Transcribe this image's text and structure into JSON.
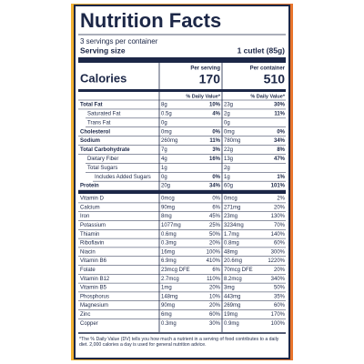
{
  "header": {
    "title": "Nutrition Facts",
    "servings": "3 servings per container",
    "serving_size_label": "Serving size",
    "serving_size": "1 cutlet (85g)"
  },
  "calories_label": "Calories",
  "columns": [
    {
      "heading": "Per serving",
      "calories": "170",
      "dv_heading": "% Daily Value*"
    },
    {
      "heading": "Per container",
      "calories": "510",
      "dv_heading": "% Daily Value*"
    }
  ],
  "nutrients": [
    {
      "name": "Total Fat",
      "bold": true,
      "indent": 0,
      "amounts": [
        "8g",
        "23g"
      ],
      "dv": [
        "10%",
        "30%"
      ]
    },
    {
      "name": "Saturated Fat",
      "bold": false,
      "indent": 1,
      "amounts": [
        "0.5g",
        "2g"
      ],
      "dv": [
        "4%",
        "11%"
      ]
    },
    {
      "name": "Trans Fat",
      "bold": false,
      "indent": 1,
      "amounts": [
        "0g",
        "0g"
      ],
      "dv": [
        null,
        null
      ]
    },
    {
      "name": "Cholesterol",
      "bold": true,
      "indent": 0,
      "amounts": [
        "0mg",
        "0mg"
      ],
      "dv": [
        "0%",
        "0%"
      ]
    },
    {
      "name": "Sodium",
      "bold": true,
      "indent": 0,
      "amounts": [
        "260mg",
        "780mg"
      ],
      "dv": [
        "11%",
        "34%"
      ]
    },
    {
      "name": "Total Carbohydrate",
      "bold": true,
      "indent": 0,
      "amounts": [
        "7g",
        "22g"
      ],
      "dv": [
        "3%",
        "8%"
      ]
    },
    {
      "name": "Dietary Fiber",
      "bold": false,
      "indent": 1,
      "amounts": [
        "4g",
        "13g"
      ],
      "dv": [
        "16%",
        "47%"
      ]
    },
    {
      "name": "Total Sugars",
      "bold": false,
      "indent": 1,
      "amounts": [
        "1g",
        "2g"
      ],
      "dv": [
        null,
        null
      ]
    },
    {
      "name": "Includes Added Sugars",
      "bold": false,
      "indent": 2,
      "amounts": [
        "0g",
        "1g"
      ],
      "dv": [
        "0%",
        "1%"
      ]
    },
    {
      "name": "Protein",
      "bold": true,
      "indent": 0,
      "amounts": [
        "20g",
        "60g"
      ],
      "dv": [
        "34%",
        "101%"
      ]
    }
  ],
  "vitamins": [
    {
      "name": "Vitamin D",
      "amounts": [
        "0mcg",
        "0mcg"
      ],
      "dv": [
        "0%",
        "2%"
      ]
    },
    {
      "name": "Calcium",
      "amounts": [
        "90mg",
        "271mg"
      ],
      "dv": [
        "6%",
        "20%"
      ]
    },
    {
      "name": "Iron",
      "amounts": [
        "8mg",
        "23mg"
      ],
      "dv": [
        "45%",
        "130%"
      ]
    },
    {
      "name": "Potassium",
      "amounts": [
        "1077mg",
        "3234mg"
      ],
      "dv": [
        "25%",
        "70%"
      ]
    },
    {
      "name": "Thiamin",
      "amounts": [
        "0.6mg",
        "1.7mg"
      ],
      "dv": [
        "50%",
        "140%"
      ]
    },
    {
      "name": "Riboflavin",
      "amounts": [
        "0.3mg",
        "0.8mg"
      ],
      "dv": [
        "20%",
        "60%"
      ]
    },
    {
      "name": "Niacin",
      "amounts": [
        "16mg",
        "48mg"
      ],
      "dv": [
        "100%",
        "300%"
      ]
    },
    {
      "name": "Vitamin B6",
      "amounts": [
        "6.9mg",
        "20.6mg"
      ],
      "dv": [
        "410%",
        "1220%"
      ]
    },
    {
      "name": "Folate",
      "amounts": [
        "23mcg DFE",
        "70mcg DFE"
      ],
      "dv": [
        "6%",
        "20%"
      ]
    },
    {
      "name": "Vitamin B12",
      "amounts": [
        "2.7mcg",
        "8.2mcg"
      ],
      "dv": [
        "110%",
        "340%"
      ]
    },
    {
      "name": "Vitamin B5",
      "amounts": [
        "1mg",
        "3mg"
      ],
      "dv": [
        "20%",
        "50%"
      ]
    },
    {
      "name": "Phosphorus",
      "amounts": [
        "148mg",
        "443mg"
      ],
      "dv": [
        "10%",
        "35%"
      ]
    },
    {
      "name": "Magnesium",
      "amounts": [
        "90mg",
        "269mg"
      ],
      "dv": [
        "20%",
        "60%"
      ]
    },
    {
      "name": "Zinc",
      "amounts": [
        "6mg",
        "19mg"
      ],
      "dv": [
        "60%",
        "170%"
      ]
    },
    {
      "name": "Copper",
      "amounts": [
        "0.3mg",
        "0.9mg"
      ],
      "dv": [
        "30%",
        "100%"
      ]
    }
  ],
  "footnote": "*The % Daily Value (DV) tells you how much a nutrient in a serving of food contributes to a daily diet. 2,000 calories a day is used for general nutrition advice."
}
